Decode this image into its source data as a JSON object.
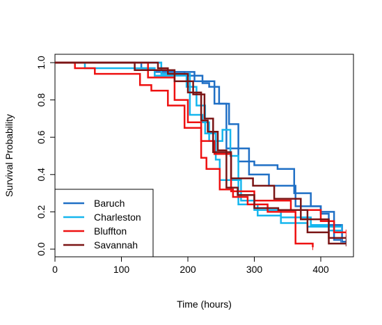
{
  "chart_data": {
    "type": "line",
    "step": true,
    "xlabel": "Time (hours)",
    "ylabel": "Survival Probability",
    "xlim": [
      0,
      450
    ],
    "ylim": [
      0,
      1.0
    ],
    "xticks": [
      0,
      100,
      200,
      300,
      400
    ],
    "yticks": [
      0.0,
      0.2,
      0.4,
      0.6,
      0.8,
      1.0
    ],
    "xtick_labels": [
      "0",
      "100",
      "200",
      "300",
      "400"
    ],
    "ytick_labels": [
      "0.0",
      "0.2",
      "0.4",
      "0.6",
      "0.8",
      "1.0"
    ],
    "grid": false,
    "legend_position": "bottom-left",
    "series": [
      {
        "name": "Baruch",
        "color": "#1f6fc5",
        "curves": [
          [
            [
              0,
              1.0
            ],
            [
              130,
              1.0
            ],
            [
              130,
              0.97
            ],
            [
              150,
              0.97
            ],
            [
              150,
              0.95
            ],
            [
              195,
              0.95
            ],
            [
              195,
              0.93
            ],
            [
              222,
              0.93
            ],
            [
              222,
              0.89
            ],
            [
              232,
              0.89
            ],
            [
              232,
              0.87
            ],
            [
              247,
              0.87
            ],
            [
              247,
              0.78
            ],
            [
              262,
              0.78
            ],
            [
              262,
              0.67
            ],
            [
              276,
              0.67
            ],
            [
              276,
              0.47
            ],
            [
              300,
              0.47
            ],
            [
              300,
              0.45
            ],
            [
              335,
              0.45
            ],
            [
              335,
              0.43
            ],
            [
              360,
              0.43
            ],
            [
              360,
              0.3
            ],
            [
              385,
              0.3
            ],
            [
              385,
              0.23
            ],
            [
              400,
              0.23
            ],
            [
              400,
              0.2
            ],
            [
              420,
              0.2
            ],
            [
              420,
              0.05
            ],
            [
              430,
              0.05
            ]
          ],
          [
            [
              0,
              1.0
            ],
            [
              160,
              1.0
            ],
            [
              160,
              0.95
            ],
            [
              210,
              0.95
            ],
            [
              210,
              0.9
            ],
            [
              240,
              0.9
            ],
            [
              240,
              0.78
            ],
            [
              258,
              0.78
            ],
            [
              258,
              0.54
            ],
            [
              292,
              0.54
            ],
            [
              292,
              0.4
            ],
            [
              322,
              0.4
            ],
            [
              322,
              0.34
            ],
            [
              362,
              0.34
            ],
            [
              362,
              0.23
            ],
            [
              400,
              0.23
            ],
            [
              400,
              0.19
            ],
            [
              412,
              0.19
            ],
            [
              412,
              0.13
            ],
            [
              432,
              0.13
            ],
            [
              432,
              0.04
            ],
            [
              438,
              0.04
            ]
          ]
        ]
      },
      {
        "name": "Charleston",
        "color": "#15b6ee",
        "curves": [
          [
            [
              0,
              1.0
            ],
            [
              45,
              1.0
            ],
            [
              45,
              0.97
            ],
            [
              150,
              0.97
            ],
            [
              150,
              0.93
            ],
            [
              198,
              0.93
            ],
            [
              198,
              0.87
            ],
            [
              213,
              0.87
            ],
            [
              213,
              0.77
            ],
            [
              226,
              0.77
            ],
            [
              226,
              0.62
            ],
            [
              242,
              0.62
            ],
            [
              242,
              0.48
            ],
            [
              248,
              0.48
            ],
            [
              248,
              0.37
            ],
            [
              280,
              0.37
            ],
            [
              280,
              0.26
            ],
            [
              300,
              0.26
            ],
            [
              300,
              0.21
            ],
            [
              340,
              0.21
            ],
            [
              340,
              0.17
            ],
            [
              385,
              0.17
            ],
            [
              385,
              0.13
            ],
            [
              412,
              0.13
            ],
            [
              412,
              0.1
            ],
            [
              432,
              0.1
            ]
          ],
          [
            [
              0,
              1.0
            ],
            [
              160,
              1.0
            ],
            [
              160,
              0.94
            ],
            [
              203,
              0.94
            ],
            [
              203,
              0.72
            ],
            [
              222,
              0.72
            ],
            [
              222,
              0.68
            ],
            [
              232,
              0.68
            ],
            [
              232,
              0.58
            ],
            [
              252,
              0.58
            ],
            [
              252,
              0.64
            ],
            [
              264,
              0.64
            ],
            [
              264,
              0.5
            ],
            [
              276,
              0.5
            ],
            [
              276,
              0.24
            ],
            [
              305,
              0.24
            ],
            [
              305,
              0.18
            ],
            [
              340,
              0.18
            ],
            [
              340,
              0.14
            ],
            [
              380,
              0.14
            ],
            [
              380,
              0.12
            ],
            [
              432,
              0.12
            ]
          ]
        ]
      },
      {
        "name": "Bluffton",
        "color": "#ee1111",
        "curves": [
          [
            [
              0,
              1.0
            ],
            [
              30,
              1.0
            ],
            [
              30,
              0.97
            ],
            [
              60,
              0.97
            ],
            [
              60,
              0.94
            ],
            [
              128,
              0.94
            ],
            [
              128,
              0.88
            ],
            [
              145,
              0.88
            ],
            [
              145,
              0.85
            ],
            [
              170,
              0.85
            ],
            [
              170,
              0.77
            ],
            [
              195,
              0.77
            ],
            [
              195,
              0.65
            ],
            [
              220,
              0.65
            ],
            [
              220,
              0.49
            ],
            [
              228,
              0.49
            ],
            [
              228,
              0.43
            ],
            [
              248,
              0.43
            ],
            [
              248,
              0.32
            ],
            [
              268,
              0.32
            ],
            [
              268,
              0.28
            ],
            [
              290,
              0.28
            ],
            [
              290,
              0.24
            ],
            [
              320,
              0.24
            ],
            [
              320,
              0.2
            ],
            [
              362,
              0.2
            ],
            [
              362,
              0.03
            ],
            [
              388,
              0.03
            ],
            [
              388,
              0.01
            ]
          ],
          [
            [
              0,
              1.0
            ],
            [
              140,
              1.0
            ],
            [
              140,
              0.92
            ],
            [
              180,
              0.92
            ],
            [
              180,
              0.8
            ],
            [
              200,
              0.8
            ],
            [
              200,
              0.68
            ],
            [
              220,
              0.68
            ],
            [
              220,
              0.58
            ],
            [
              240,
              0.58
            ],
            [
              240,
              0.51
            ],
            [
              265,
              0.51
            ],
            [
              265,
              0.31
            ],
            [
              300,
              0.31
            ],
            [
              300,
              0.26
            ],
            [
              355,
              0.26
            ],
            [
              355,
              0.21
            ],
            [
              400,
              0.21
            ],
            [
              400,
              0.15
            ],
            [
              420,
              0.15
            ],
            [
              420,
              0.09
            ],
            [
              438,
              0.09
            ]
          ]
        ]
      },
      {
        "name": "Savannah",
        "color": "#7a1414",
        "curves": [
          [
            [
              0,
              1.0
            ],
            [
              155,
              1.0
            ],
            [
              155,
              0.97
            ],
            [
              170,
              0.97
            ],
            [
              170,
              0.94
            ],
            [
              200,
              0.94
            ],
            [
              200,
              0.84
            ],
            [
              220,
              0.84
            ],
            [
              220,
              0.69
            ],
            [
              230,
              0.69
            ],
            [
              230,
              0.63
            ],
            [
              245,
              0.63
            ],
            [
              245,
              0.53
            ],
            [
              258,
              0.53
            ],
            [
              258,
              0.33
            ],
            [
              275,
              0.33
            ],
            [
              275,
              0.29
            ],
            [
              300,
              0.29
            ],
            [
              300,
              0.22
            ],
            [
              336,
              0.22
            ],
            [
              336,
              0.21
            ],
            [
              380,
              0.21
            ],
            [
              380,
              0.09
            ],
            [
              412,
              0.09
            ],
            [
              412,
              0.03
            ],
            [
              438,
              0.03
            ]
          ],
          [
            [
              0,
              1.0
            ],
            [
              120,
              1.0
            ],
            [
              120,
              0.96
            ],
            [
              180,
              0.96
            ],
            [
              180,
              0.9
            ],
            [
              208,
              0.9
            ],
            [
              208,
              0.83
            ],
            [
              225,
              0.83
            ],
            [
              225,
              0.7
            ],
            [
              238,
              0.7
            ],
            [
              238,
              0.52
            ],
            [
              265,
              0.52
            ],
            [
              265,
              0.38
            ],
            [
              298,
              0.38
            ],
            [
              298,
              0.34
            ],
            [
              330,
              0.34
            ],
            [
              330,
              0.27
            ],
            [
              370,
              0.27
            ],
            [
              370,
              0.16
            ],
            [
              412,
              0.16
            ],
            [
              412,
              0.06
            ],
            [
              438,
              0.06
            ]
          ]
        ]
      }
    ]
  }
}
